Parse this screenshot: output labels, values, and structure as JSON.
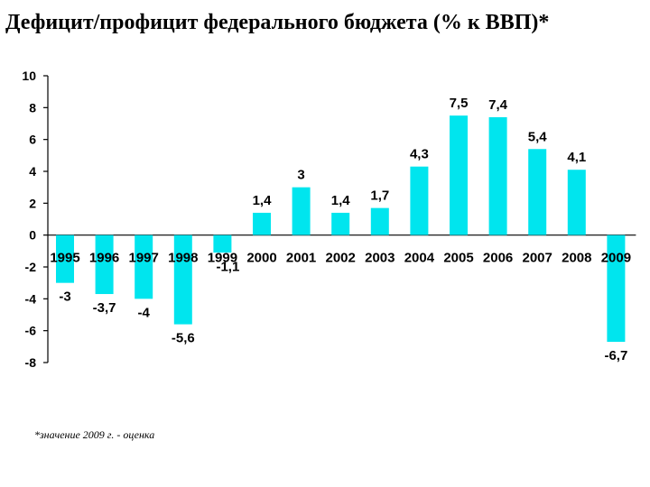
{
  "title": "Дефицит/профицит федерального бюджета (% к ВВП)*",
  "footnote": "*значение 2009 г. - оценка",
  "colors": {
    "bar": "#00E5EE",
    "axis": "#000000",
    "text": "#000000"
  },
  "chart_data": {
    "type": "bar",
    "title": "Дефицит/профицит федерального бюджета (% к ВВП)*",
    "xlabel": "",
    "ylabel": "",
    "categories": [
      "1995",
      "1996",
      "1997",
      "1998",
      "1999",
      "2000",
      "2001",
      "2002",
      "2003",
      "2004",
      "2005",
      "2006",
      "2007",
      "2008",
      "2009"
    ],
    "values": [
      -3,
      -3.7,
      -4,
      -5.6,
      -1.1,
      1.4,
      3,
      1.4,
      1.7,
      4.3,
      7.5,
      7.4,
      5.4,
      4.1,
      -6.7
    ],
    "value_labels": [
      "-3",
      "-3,7",
      "-4",
      "-5,6",
      "-1,1",
      "1,4",
      "3",
      "1,4",
      "1,7",
      "4,3",
      "7,5",
      "7,4",
      "5,4",
      "4,1",
      "-6,7"
    ],
    "ylim": [
      -8,
      10
    ],
    "yticks": [
      10,
      8,
      6,
      4,
      2,
      0,
      -2,
      -4,
      -6,
      -8
    ],
    "grid": false,
    "legend": "none"
  }
}
